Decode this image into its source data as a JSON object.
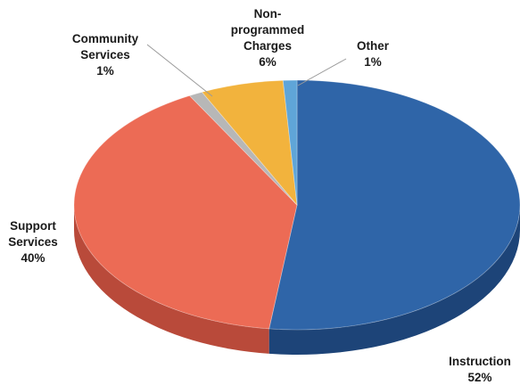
{
  "chart_data": {
    "type": "pie",
    "style": "3d",
    "title": "",
    "legend": "none",
    "slices": [
      {
        "label": "Instruction",
        "label_lines": [
          "Instruction"
        ],
        "value": 52,
        "value_label": "52%",
        "color": "#2f65a8",
        "dark_color": "#1d4478"
      },
      {
        "label": "Support Services",
        "label_lines": [
          "Support",
          "Services"
        ],
        "value": 40,
        "value_label": "40%",
        "color": "#ec6b55",
        "dark_color": "#b94a3a"
      },
      {
        "label": "Community Services",
        "label_lines": [
          "Community",
          "Services"
        ],
        "value": 1,
        "value_label": "1%",
        "color": "#b7b7b7",
        "dark_color": "#8a8a8a"
      },
      {
        "label": "Non-programmed Charges",
        "label_lines": [
          "Non-",
          "programmed",
          "Charges"
        ],
        "value": 6,
        "value_label": "6%",
        "color": "#f2b33d",
        "dark_color": "#c28a23"
      },
      {
        "label": "Other",
        "label_lines": [
          "Other"
        ],
        "value": 1,
        "value_label": "1%",
        "color": "#5fa5d8",
        "dark_color": "#3f7fb0"
      }
    ]
  }
}
